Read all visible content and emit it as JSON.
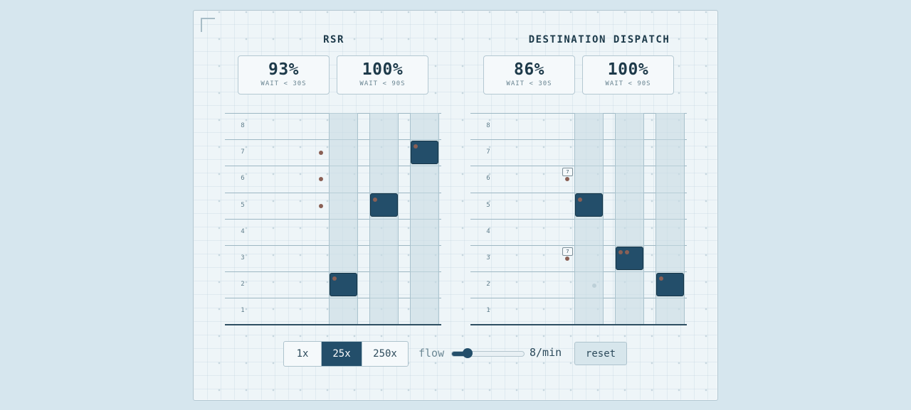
{
  "sections": [
    {
      "title": "RSR",
      "stats": [
        {
          "value": "93%",
          "label": "WAIT < 30S"
        },
        {
          "value": "100%",
          "label": "WAIT < 90S"
        }
      ],
      "floors": [
        "8",
        "7",
        "6",
        "5",
        "4",
        "3",
        "2",
        "1"
      ],
      "cars_at_floor": [
        2,
        5,
        7
      ],
      "waiting_floors": [
        7,
        6,
        5
      ],
      "waiting_tags": []
    },
    {
      "title": "DESTINATION DISPATCH",
      "stats": [
        {
          "value": "86%",
          "label": "WAIT < 30S"
        },
        {
          "value": "100%",
          "label": "WAIT < 90S"
        }
      ],
      "floors": [
        "8",
        "7",
        "6",
        "5",
        "4",
        "3",
        "2",
        "1"
      ],
      "cars_at_floor": [
        5,
        3,
        2
      ],
      "waiting_floors": [
        6,
        3
      ],
      "waiting_tags": [
        "7",
        "7"
      ]
    }
  ],
  "controls": {
    "speeds": [
      "1x",
      "25x",
      "250x"
    ],
    "active_speed": "25x",
    "flow_label": "flow",
    "flow_value": "8/min",
    "flow_fraction": 0.22,
    "reset_label": "reset"
  },
  "colors": {
    "car": "#234e6a",
    "rider": "#8a6055",
    "background": "#d6e6ee"
  }
}
